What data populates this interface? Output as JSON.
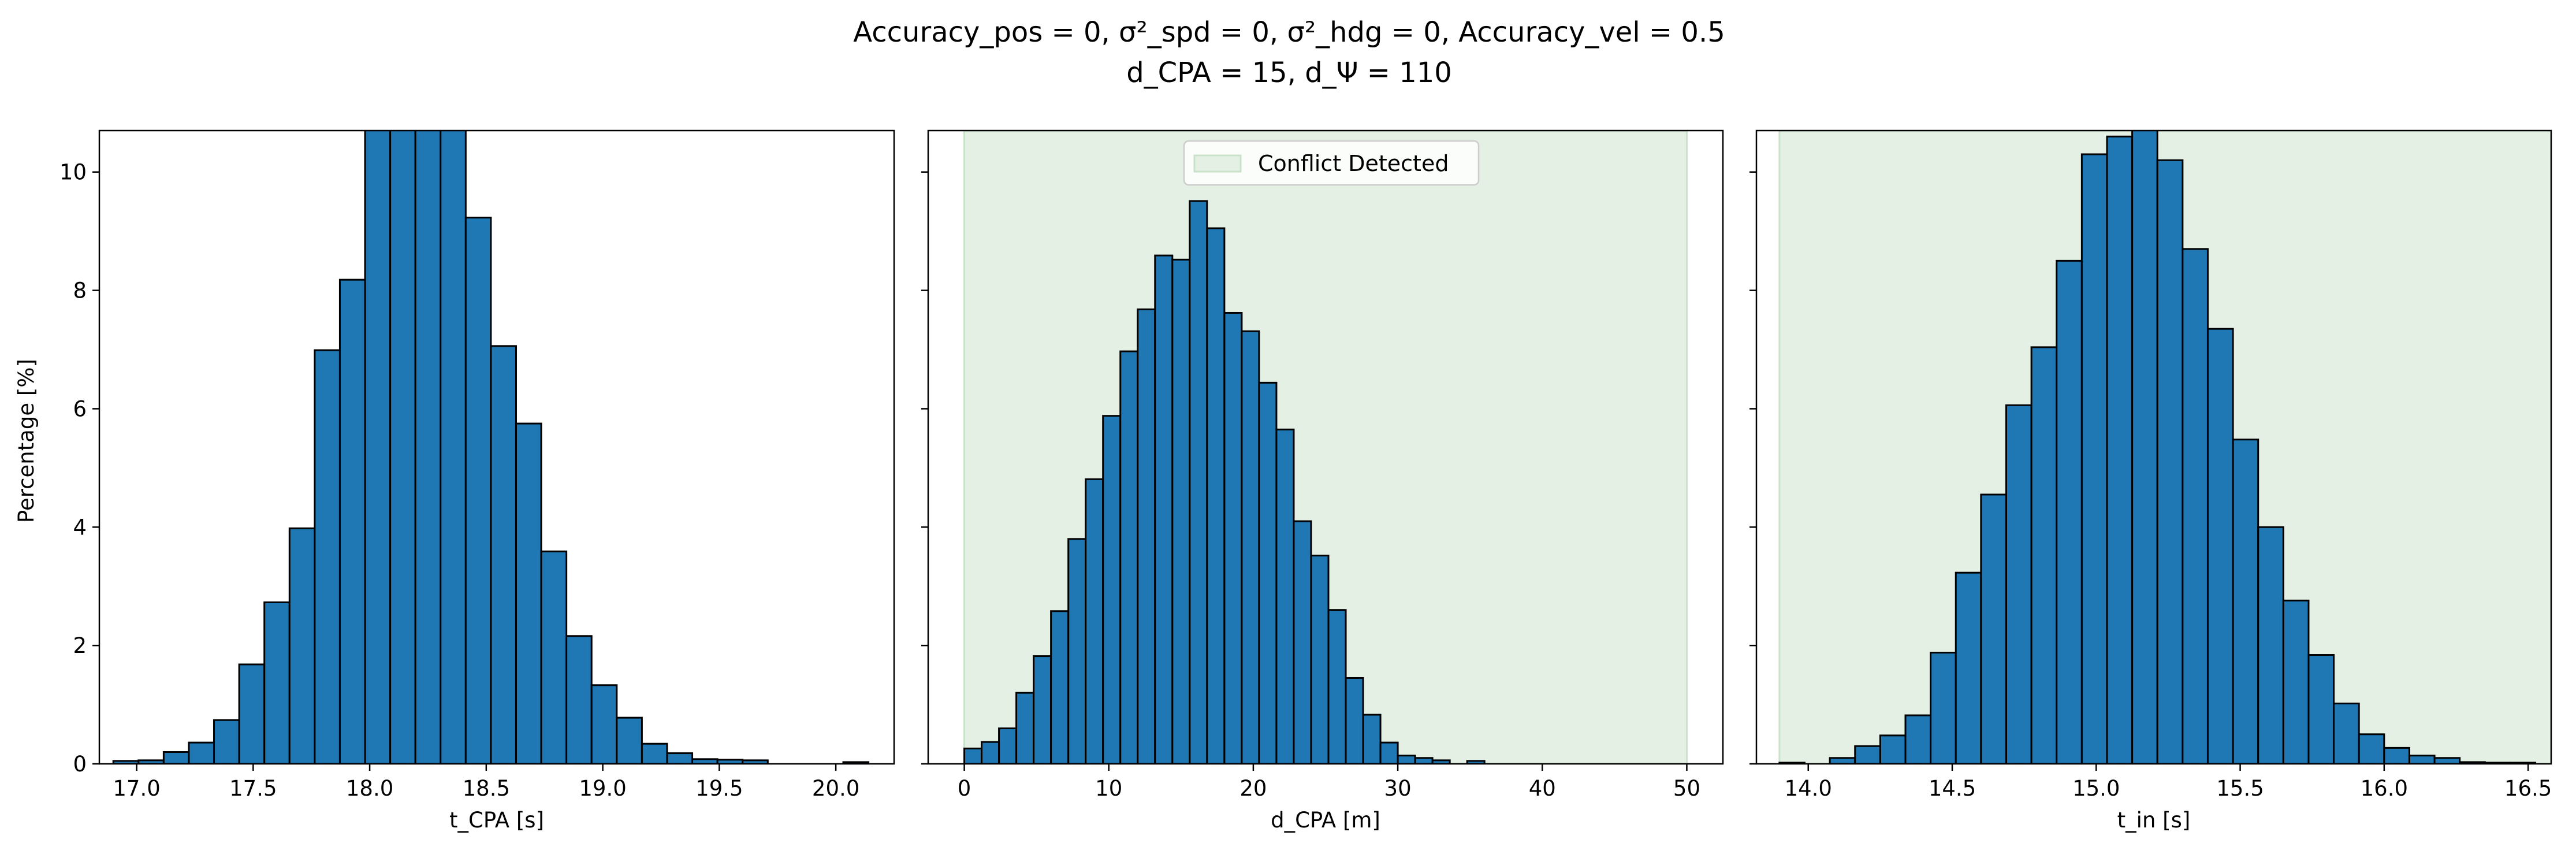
{
  "title": {
    "line1": "Accuracy_pos = 0, σ²_spd = 0, σ²_hdg = 0, Accuracy_vel = 0.5",
    "line2": "d_CPA = 15, d_Ψ = 110"
  },
  "ylabel": "Percentage [%]",
  "colors": {
    "bar_fill": "#1f77b4",
    "bar_edge": "#000000",
    "conflict_fill": "#e5f0e5",
    "conflict_edge": "#c9e2c9"
  },
  "legend": {
    "label": "Conflict Detected",
    "placement": "upper-center"
  },
  "chart_data": [
    {
      "type": "bar",
      "xlabel": "t_CPA [s]",
      "xlim": [
        16.84,
        20.25
      ],
      "ylim": [
        0,
        10.7
      ],
      "xticks": [
        17.0,
        17.5,
        18.0,
        18.5,
        19.0,
        19.5,
        20.0
      ],
      "xtick_labels": [
        "17.0",
        "17.5",
        "18.0",
        "18.5",
        "19.0",
        "19.5",
        "20.0"
      ],
      "yticks": [
        0,
        2,
        4,
        6,
        8,
        10
      ],
      "ytick_labels": [
        "0",
        "2",
        "4",
        "6",
        "8",
        "10"
      ],
      "bin_start": 16.9,
      "bin_width": 0.108,
      "values": [
        0.05,
        0.06,
        0.2,
        0.36,
        0.74,
        1.68,
        2.73,
        3.98,
        6.99,
        8.18,
        11.2,
        11.6,
        11.6,
        11.3,
        9.23,
        7.06,
        5.75,
        3.59,
        2.16,
        1.33,
        0.78,
        0.34,
        0.18,
        0.08,
        0.07,
        0.06,
        0.0,
        0.0,
        0.0,
        0.03
      ],
      "conflict_region": null
    },
    {
      "type": "bar",
      "xlabel": "d_CPA [m]",
      "xlim": [
        -2.5,
        52.5
      ],
      "ylim": [
        0,
        10.7
      ],
      "xticks": [
        0,
        10,
        20,
        30,
        40,
        50
      ],
      "xtick_labels": [
        "0",
        "10",
        "20",
        "30",
        "40",
        "50"
      ],
      "yticks": [
        0,
        2,
        4,
        6,
        8,
        10
      ],
      "ytick_labels": [
        "",
        "",
        "",
        "",
        "",
        ""
      ],
      "bin_start": 0.0,
      "bin_width": 1.2,
      "values": [
        0.26,
        0.37,
        0.6,
        1.2,
        1.82,
        2.58,
        3.8,
        4.81,
        5.88,
        6.97,
        7.68,
        8.59,
        8.52,
        9.51,
        9.05,
        7.62,
        7.31,
        6.44,
        5.65,
        4.1,
        3.52,
        2.6,
        1.45,
        0.83,
        0.36,
        0.14,
        0.1,
        0.06,
        0.0,
        0.05
      ],
      "conflict_region": [
        0,
        50
      ]
    },
    {
      "type": "bar",
      "xlabel": "t_in [s]",
      "xlim": [
        13.82,
        16.58
      ],
      "ylim": [
        0,
        10.7
      ],
      "xticks": [
        14.0,
        14.5,
        15.0,
        15.5,
        16.0,
        16.5
      ],
      "xtick_labels": [
        "14.0",
        "14.5",
        "15.0",
        "15.5",
        "16.0",
        "16.5"
      ],
      "yticks": [
        0,
        2,
        4,
        6,
        8,
        10
      ],
      "ytick_labels": [
        "",
        "",
        "",
        "",
        "",
        ""
      ],
      "bin_start": 13.9,
      "bin_width": 0.0875,
      "values": [
        0.02,
        0.0,
        0.1,
        0.3,
        0.48,
        0.82,
        1.88,
        3.23,
        4.55,
        6.06,
        7.04,
        8.5,
        10.3,
        10.6,
        10.8,
        10.2,
        8.7,
        7.35,
        5.48,
        4.0,
        2.76,
        1.84,
        1.02,
        0.5,
        0.27,
        0.14,
        0.1,
        0.03,
        0.02,
        0.02
      ],
      "conflict_region": [
        13.9,
        16.58
      ]
    }
  ]
}
